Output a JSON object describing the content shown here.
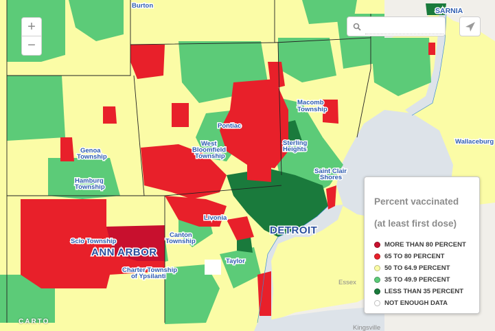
{
  "map": {
    "cities": [
      {
        "name": "Burton",
        "big": false
      },
      {
        "name": "SARNIA",
        "big": false
      },
      {
        "name": "Macomb Township",
        "big": false
      },
      {
        "name": "Pontiac",
        "big": false
      },
      {
        "name": "West Bloomfield Township",
        "big": false
      },
      {
        "name": "Sterling Heights",
        "big": false
      },
      {
        "name": "Wallaceburg",
        "big": false
      },
      {
        "name": "Genoa Township",
        "big": false
      },
      {
        "name": "Saint Clair Shores",
        "big": false
      },
      {
        "name": "Hamburg Township",
        "big": false
      },
      {
        "name": "Livonia",
        "big": false
      },
      {
        "name": "DETROIT",
        "big": true
      },
      {
        "name": "Scio Township",
        "big": false
      },
      {
        "name": "Canton Township",
        "big": false
      },
      {
        "name": "ANN ARBOR",
        "big": true
      },
      {
        "name": "Charter Township of Ypsilanti",
        "big": false
      },
      {
        "name": "Taylor",
        "big": false
      },
      {
        "name": "Essex",
        "big": false
      },
      {
        "name": "Kingsville",
        "big": false
      }
    ]
  },
  "controls": {
    "zoom_in": "+",
    "zoom_out": "−",
    "search_placeholder": "",
    "attribution": "CARTO"
  },
  "legend": {
    "title": "Percent vaccinated",
    "subtitle": "(at least first dose)",
    "items": [
      {
        "label": "MORE THAN 80 PERCENT",
        "color": "#c8102e"
      },
      {
        "label": "65 TO 80 PERCENT",
        "color": "#e8202a"
      },
      {
        "label": "50 TO 64.9 PERCENT",
        "color": "#fbfca6"
      },
      {
        "label": "35 TO 49.9 PERCENT",
        "color": "#5ccb78"
      },
      {
        "label": "LESS THAN 35 PERCENT",
        "color": "#1a7a3c"
      },
      {
        "label": "NOT ENOUGH DATA",
        "color": "#ffffff"
      }
    ]
  },
  "colors": {
    "land": "#fbfca6",
    "water": "#dde3e9",
    "canada": "#f1efea",
    "county_border": "#222222"
  }
}
